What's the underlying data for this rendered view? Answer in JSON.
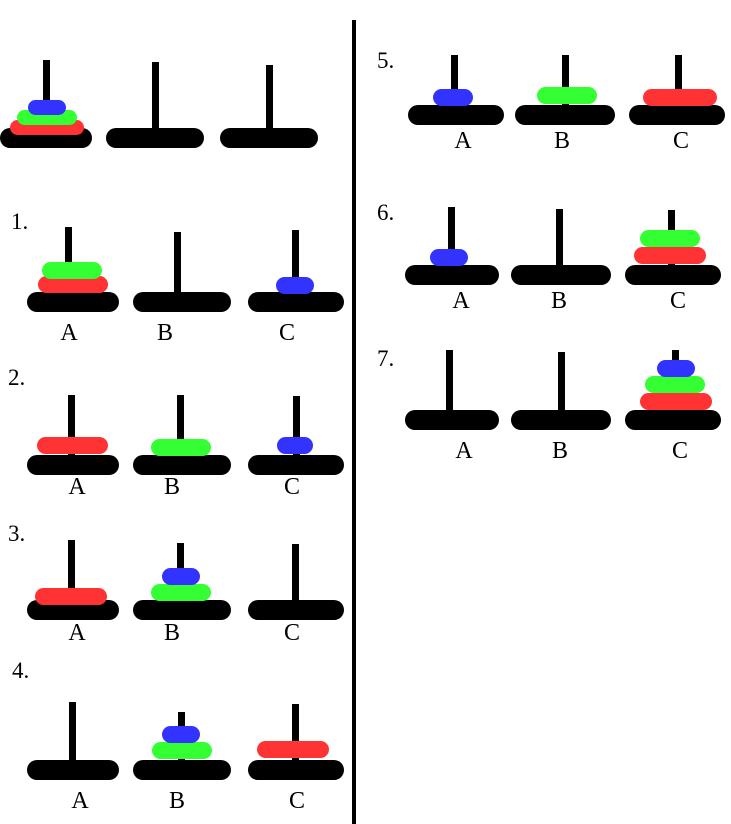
{
  "colors": {
    "red": "#ff3333",
    "green": "#33ff33",
    "blue": "#3333ff",
    "structure": "#000000"
  },
  "initial": {
    "number": "",
    "towers": [
      [
        "red",
        "green",
        "blue"
      ],
      [],
      []
    ],
    "labels": [
      "",
      "",
      ""
    ]
  },
  "steps": [
    {
      "number": "1.",
      "towers": [
        [
          "red",
          "green"
        ],
        [],
        [
          "blue"
        ]
      ],
      "labels": [
        "A",
        "B",
        "C"
      ]
    },
    {
      "number": "2.",
      "towers": [
        [
          "red"
        ],
        [
          "green"
        ],
        [
          "blue"
        ]
      ],
      "labels": [
        "A",
        "B",
        "C"
      ]
    },
    {
      "number": "3.",
      "towers": [
        [
          "red"
        ],
        [
          "green",
          "blue"
        ],
        []
      ],
      "labels": [
        "A",
        "B",
        "C"
      ]
    },
    {
      "number": "4.",
      "towers": [
        [],
        [
          "green",
          "blue"
        ],
        [
          "red"
        ]
      ],
      "labels": [
        "A",
        "B",
        "C"
      ]
    },
    {
      "number": "5.",
      "towers": [
        [
          "blue"
        ],
        [
          "green"
        ],
        [
          "red"
        ]
      ],
      "labels": [
        "A",
        "B",
        "C"
      ]
    },
    {
      "number": "6.",
      "towers": [
        [
          "blue"
        ],
        [],
        [
          "red",
          "green"
        ]
      ],
      "labels": [
        "A",
        "B",
        "C"
      ]
    },
    {
      "number": "7.",
      "towers": [
        [],
        [],
        [
          "red",
          "green",
          "blue"
        ]
      ],
      "labels": [
        "A",
        "B",
        "C"
      ]
    }
  ]
}
